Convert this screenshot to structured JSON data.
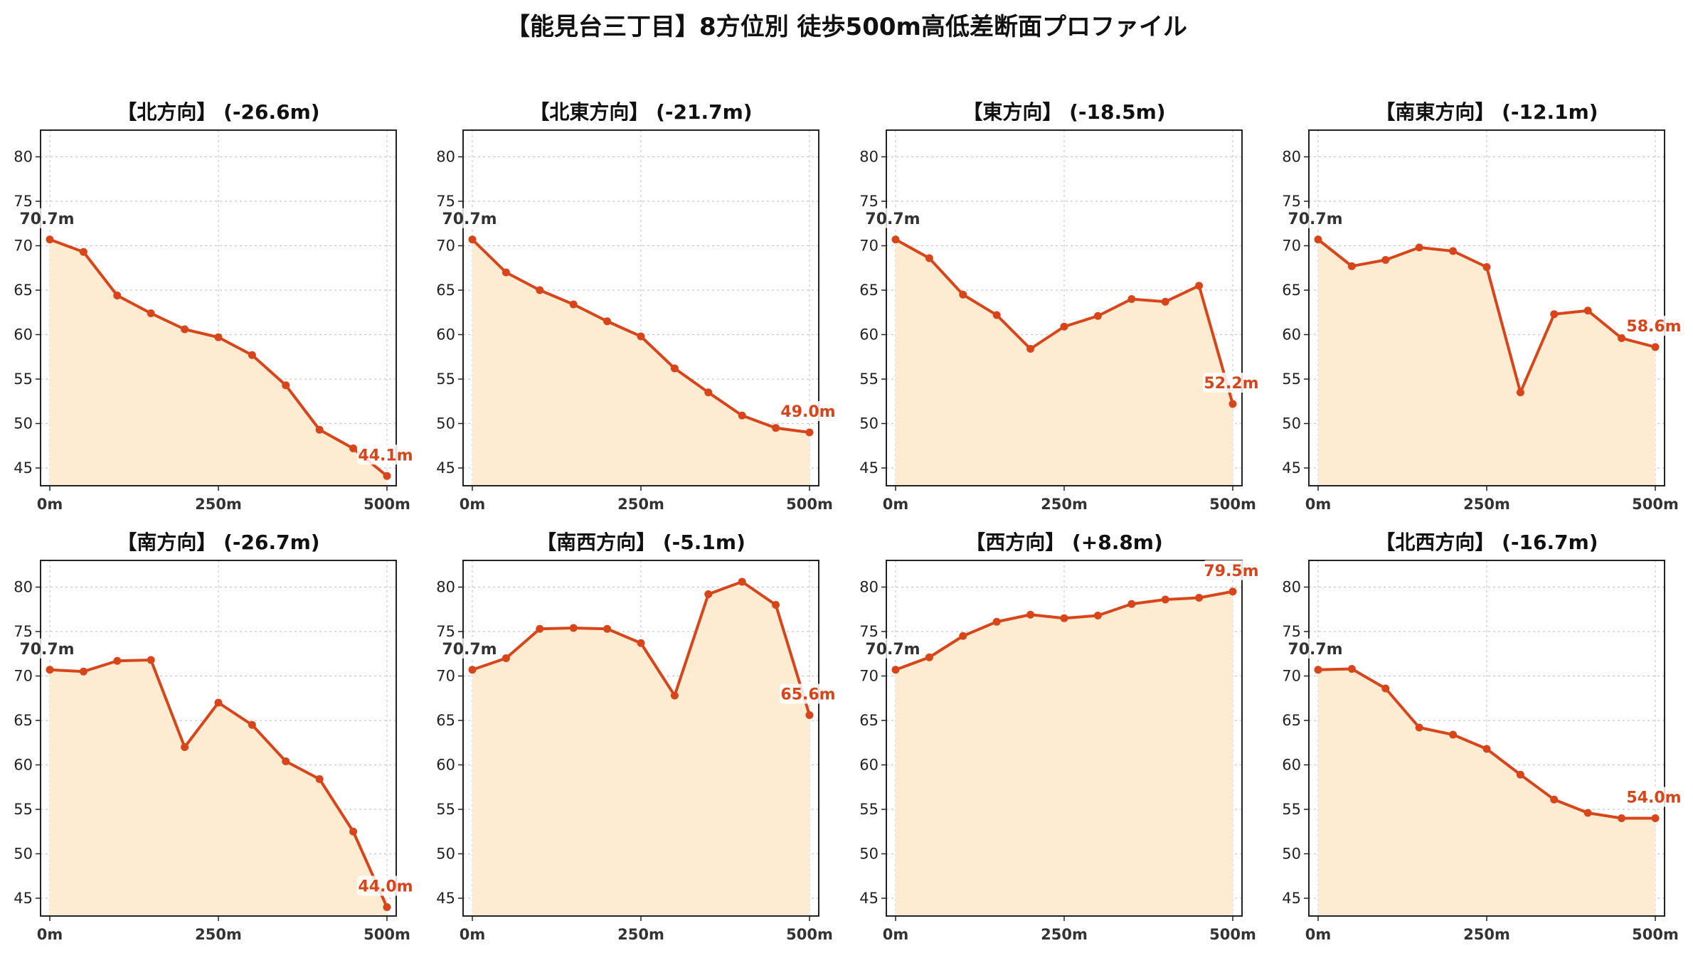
{
  "page_title": "【能見台三丁目】8方位別 徒歩500m高低差断面プロファイル",
  "colors": {
    "line": "#d9451a",
    "fill": "#fdecd2",
    "start_label": "#333333",
    "end_label": "#d9451a",
    "grid": "#c8c8c8"
  },
  "chart_data": [
    {
      "type": "area",
      "title": "【北方向】 (-26.6m)",
      "x": [
        0,
        50,
        100,
        150,
        200,
        250,
        300,
        350,
        400,
        450,
        500
      ],
      "values": [
        70.7,
        69.3,
        64.4,
        62.4,
        60.6,
        59.7,
        57.7,
        54.3,
        49.3,
        47.2,
        44.1
      ],
      "start_label": "70.7m",
      "end_label": "44.1m",
      "xlim": [
        0,
        500
      ],
      "ylim": [
        43,
        83
      ],
      "yticks": [
        45,
        50,
        55,
        60,
        65,
        70,
        75,
        80
      ],
      "xticks": [
        "0m",
        "250m",
        "500m"
      ],
      "grid": true
    },
    {
      "type": "area",
      "title": "【北東方向】 (-21.7m)",
      "x": [
        0,
        50,
        100,
        150,
        200,
        250,
        300,
        350,
        400,
        450,
        500
      ],
      "values": [
        70.7,
        67.0,
        65.0,
        63.4,
        61.5,
        59.8,
        56.2,
        53.5,
        50.9,
        49.5,
        49.0
      ],
      "start_label": "70.7m",
      "end_label": "49.0m",
      "xlim": [
        0,
        500
      ],
      "ylim": [
        43,
        83
      ],
      "yticks": [
        45,
        50,
        55,
        60,
        65,
        70,
        75,
        80
      ],
      "xticks": [
        "0m",
        "250m",
        "500m"
      ],
      "grid": true
    },
    {
      "type": "area",
      "title": "【東方向】 (-18.5m)",
      "x": [
        0,
        50,
        100,
        150,
        200,
        250,
        300,
        350,
        400,
        450,
        500
      ],
      "values": [
        70.7,
        68.6,
        64.5,
        62.2,
        58.4,
        60.9,
        62.1,
        64.0,
        63.7,
        65.5,
        52.2
      ],
      "start_label": "70.7m",
      "end_label": "52.2m",
      "xlim": [
        0,
        500
      ],
      "ylim": [
        43,
        83
      ],
      "yticks": [
        45,
        50,
        55,
        60,
        65,
        70,
        75,
        80
      ],
      "xticks": [
        "0m",
        "250m",
        "500m"
      ],
      "grid": true
    },
    {
      "type": "area",
      "title": "【南東方向】 (-12.1m)",
      "x": [
        0,
        50,
        100,
        150,
        200,
        250,
        300,
        350,
        400,
        450,
        500
      ],
      "values": [
        70.7,
        67.7,
        68.4,
        69.8,
        69.4,
        67.6,
        53.5,
        62.3,
        62.7,
        59.6,
        58.6
      ],
      "start_label": "70.7m",
      "end_label": "58.6m",
      "xlim": [
        0,
        500
      ],
      "ylim": [
        43,
        83
      ],
      "yticks": [
        45,
        50,
        55,
        60,
        65,
        70,
        75,
        80
      ],
      "xticks": [
        "0m",
        "250m",
        "500m"
      ],
      "grid": true
    },
    {
      "type": "area",
      "title": "【南方向】 (-26.7m)",
      "x": [
        0,
        50,
        100,
        150,
        200,
        250,
        300,
        350,
        400,
        450,
        500
      ],
      "values": [
        70.7,
        70.5,
        71.7,
        71.8,
        62.0,
        67.0,
        64.5,
        60.4,
        58.4,
        52.5,
        44.0
      ],
      "start_label": "70.7m",
      "end_label": "44.0m",
      "xlim": [
        0,
        500
      ],
      "ylim": [
        43,
        83
      ],
      "yticks": [
        45,
        50,
        55,
        60,
        65,
        70,
        75,
        80
      ],
      "xticks": [
        "0m",
        "250m",
        "500m"
      ],
      "grid": true
    },
    {
      "type": "area",
      "title": "【南西方向】 (-5.1m)",
      "x": [
        0,
        50,
        100,
        150,
        200,
        250,
        300,
        350,
        400,
        450,
        500
      ],
      "values": [
        70.7,
        72.0,
        75.3,
        75.4,
        75.3,
        73.7,
        67.8,
        79.2,
        80.6,
        78.0,
        65.6
      ],
      "start_label": "70.7m",
      "end_label": "65.6m",
      "xlim": [
        0,
        500
      ],
      "ylim": [
        43,
        83
      ],
      "yticks": [
        45,
        50,
        55,
        60,
        65,
        70,
        75,
        80
      ],
      "xticks": [
        "0m",
        "250m",
        "500m"
      ],
      "grid": true
    },
    {
      "type": "area",
      "title": "【西方向】 (+8.8m)",
      "x": [
        0,
        50,
        100,
        150,
        200,
        250,
        300,
        350,
        400,
        450,
        500
      ],
      "values": [
        70.7,
        72.1,
        74.5,
        76.1,
        76.9,
        76.5,
        76.8,
        78.1,
        78.6,
        78.8,
        79.5
      ],
      "start_label": "70.7m",
      "end_label": "79.5m",
      "xlim": [
        0,
        500
      ],
      "ylim": [
        43,
        83
      ],
      "yticks": [
        45,
        50,
        55,
        60,
        65,
        70,
        75,
        80
      ],
      "xticks": [
        "0m",
        "250m",
        "500m"
      ],
      "grid": true
    },
    {
      "type": "area",
      "title": "【北西方向】 (-16.7m)",
      "x": [
        0,
        50,
        100,
        150,
        200,
        250,
        300,
        350,
        400,
        450,
        500
      ],
      "values": [
        70.7,
        70.8,
        68.6,
        64.2,
        63.4,
        61.8,
        58.9,
        56.1,
        54.6,
        54.0,
        54.0
      ],
      "start_label": "70.7m",
      "end_label": "54.0m",
      "xlim": [
        0,
        500
      ],
      "ylim": [
        43,
        83
      ],
      "yticks": [
        45,
        50,
        55,
        60,
        65,
        70,
        75,
        80
      ],
      "xticks": [
        "0m",
        "250m",
        "500m"
      ],
      "grid": true
    }
  ]
}
